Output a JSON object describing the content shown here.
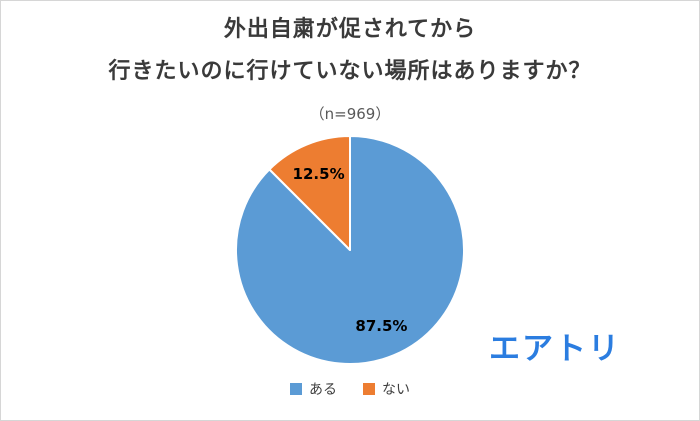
{
  "title": {
    "line1": "外出自粛が促されてから",
    "line2": "行きたいのに行けていない場所はありますか？",
    "subtitle": "（n=969）"
  },
  "brand": {
    "name": "エアトリ",
    "color": "#2b7de0"
  },
  "chart_data": {
    "type": "pie",
    "title": "外出自粛が促されてから 行きたいのに行けていない場所はありますか？",
    "n_label": "（n=969）",
    "categories": [
      "ある",
      "ない"
    ],
    "values": [
      87.5,
      12.5
    ],
    "series": [
      {
        "name": "ある",
        "value": 87.5,
        "label": "87.5%",
        "color": "#5B9BD5"
      },
      {
        "name": "ない",
        "value": 12.5,
        "label": "12.5%",
        "color": "#ED7D31"
      }
    ],
    "start_angle_deg": 0,
    "direction": "clockwise",
    "legend_position": "bottom",
    "data_labels": "inside-percent"
  }
}
